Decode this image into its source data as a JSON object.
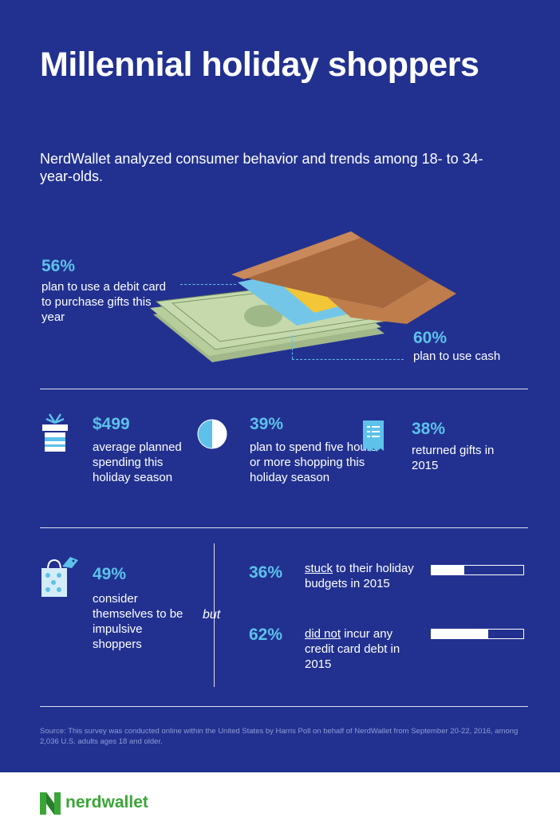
{
  "title": "Millennial holiday shoppers",
  "subtitle": "NerdWallet analyzed consumer behavior and trends among 18- to 34-year-olds.",
  "wallet_section": {
    "debit": {
      "percent": "56%",
      "text": "plan to use a debit card to purchase gifts this year"
    },
    "cash": {
      "percent": "60%",
      "text": "plan to use cash"
    }
  },
  "stats_row": [
    {
      "icon": "gift-box-icon",
      "value": "$499",
      "text": "average planned spending this holiday season"
    },
    {
      "icon": "pie-clock-icon",
      "value": "39%",
      "text": "plan to spend five hours or more shopping this holiday season"
    },
    {
      "icon": "receipt-icon",
      "value": "38%",
      "text": "returned gifts in 2015"
    }
  ],
  "impulse": {
    "icon": "shopping-bag-icon",
    "value": "49%",
    "text": "consider themselves to be impulsive shoppers",
    "connector": "but"
  },
  "budgets": [
    {
      "value": "36%",
      "fraction": 0.36,
      "underlined": "stuck",
      "rest": " to their holiday budgets in 2015"
    },
    {
      "value": "62%",
      "fraction": 0.62,
      "underlined": "did not",
      "rest": " incur any credit card debt in 2015"
    }
  ],
  "source": "Source: This survey was conducted online within the United States by Harris Poll on behalf of NerdWallet from September 20-22, 2016, among 2,036 U.S. adults ages 18 and older.",
  "brand": {
    "name": "nerdwallet",
    "color": "#3aa637"
  },
  "colors": {
    "background": "#223190",
    "accent": "#5dc1ea"
  }
}
